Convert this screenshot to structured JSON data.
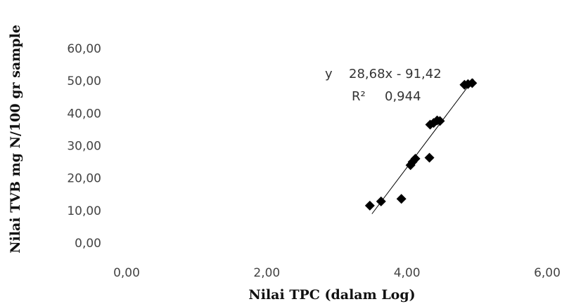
{
  "chart_data": {
    "type": "scatter",
    "title": "",
    "xlabel": "Nilai TPC (dalam Log)",
    "ylabel": "Nilai TVB mg N/100 gr sample",
    "xlim": [
      0,
      6
    ],
    "ylim": [
      0,
      60
    ],
    "x_ticks": [
      "0,00",
      "2,00",
      "4,00",
      "6,00"
    ],
    "y_ticks": [
      "0,00",
      "10,00",
      "20,00",
      "30,00",
      "40,00",
      "50,00",
      "60,00"
    ],
    "grid": false,
    "legend": "none",
    "series": [
      {
        "points": [
          {
            "x": 3.47,
            "y": 11.5
          },
          {
            "x": 3.63,
            "y": 12.8
          },
          {
            "x": 3.92,
            "y": 13.6
          },
          {
            "x": 4.05,
            "y": 24.0
          },
          {
            "x": 4.08,
            "y": 25.0
          },
          {
            "x": 4.12,
            "y": 26.0
          },
          {
            "x": 4.32,
            "y": 26.3
          },
          {
            "x": 4.33,
            "y": 36.5
          },
          {
            "x": 4.38,
            "y": 37.0
          },
          {
            "x": 4.43,
            "y": 37.8
          },
          {
            "x": 4.47,
            "y": 37.6
          },
          {
            "x": 4.82,
            "y": 48.8
          },
          {
            "x": 4.87,
            "y": 49.0
          },
          {
            "x": 4.93,
            "y": 49.3
          }
        ],
        "marker": "diamond",
        "color": "#000000"
      }
    ],
    "trendline": {
      "slope": 28.68,
      "intercept": -91.42,
      "x_range": [
        3.5,
        4.95
      ],
      "color": "#000000"
    },
    "annotations": {
      "equation_prefix": "y",
      "equation": "28,68x - 91,42",
      "r2_label": "R²",
      "r2_value": "0,944"
    }
  }
}
